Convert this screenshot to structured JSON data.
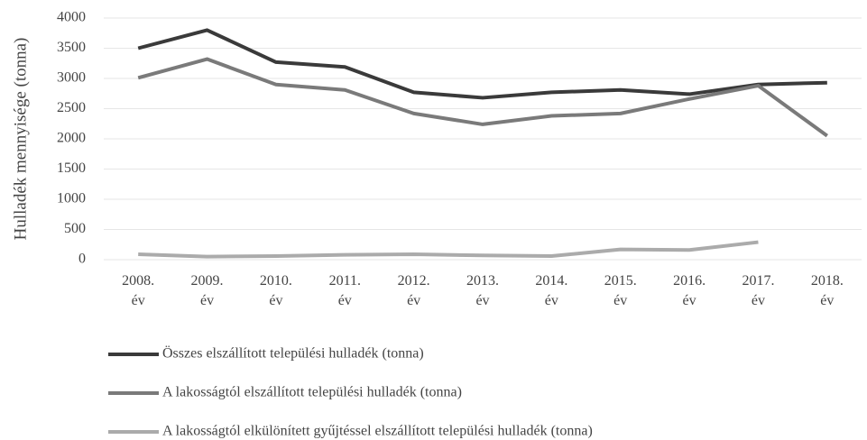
{
  "chart_data": {
    "type": "line",
    "y_label": "Hulladék mennyisége (tonna)",
    "categories": [
      "2008. év",
      "2009. év",
      "2010. év",
      "2011. év",
      "2012. év",
      "2013. év",
      "2014. év",
      "2015. év",
      "2016. év",
      "2017. év",
      "2018. év"
    ],
    "series": [
      {
        "name": "Összes elszállított települési hulladék (tonna)",
        "color": "#3a3a3a",
        "values": [
          3500,
          3800,
          3270,
          3190,
          2770,
          2680,
          2770,
          2810,
          2740,
          2900,
          2930
        ]
      },
      {
        "name": "A lakosságtól elszállított települési hulladék (tonna)",
        "color": "#7a7a7a",
        "values": [
          3010,
          3320,
          2900,
          2810,
          2420,
          2240,
          2380,
          2420,
          2660,
          2880,
          2050
        ]
      },
      {
        "name": "A lakosságtól elkülönített gyűjtéssel elszállított települési hulladék (tonna)",
        "color": "#ababab",
        "values": [
          90,
          50,
          60,
          80,
          90,
          70,
          60,
          170,
          160,
          290,
          null
        ]
      }
    ],
    "ylim": [
      0,
      4000
    ],
    "yticks": [
      0,
      500,
      1000,
      1500,
      2000,
      2500,
      3000,
      3500,
      4000
    ],
    "grid": true,
    "legend": "bottom"
  }
}
